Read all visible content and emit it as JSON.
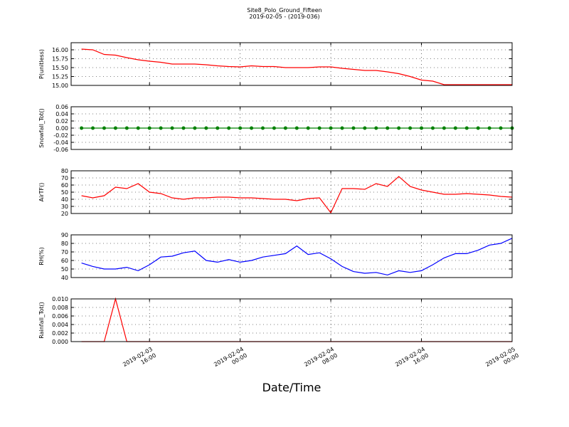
{
  "chart_data": {
    "type": "line",
    "title": "Site8_Polo_Ground_Fifteen",
    "subtitle": "2019-02-05 - (2019-036)",
    "xlabel": "Date/Time",
    "grid": true,
    "xlim": [
      "2019-02-03 09:05",
      "2019-02-05 00:00"
    ],
    "xticks": [
      {
        "value": "2019-02-03 16:00",
        "label": "2019-02-03\n16:00"
      },
      {
        "value": "2019-02-04 00:00",
        "label": "2019-02-04\n00:00"
      },
      {
        "value": "2019-02-04 08:00",
        "label": "2019-02-04\n08:00"
      },
      {
        "value": "2019-02-04 16:00",
        "label": "2019-02-04\n16:00"
      },
      {
        "value": "2019-02-05 00:00",
        "label": "2019-02-05\n00:00"
      }
    ],
    "x": [
      "2019-02-03 10:00",
      "2019-02-03 11:00",
      "2019-02-03 12:00",
      "2019-02-03 13:00",
      "2019-02-03 14:00",
      "2019-02-03 15:00",
      "2019-02-03 16:00",
      "2019-02-03 17:00",
      "2019-02-03 18:00",
      "2019-02-03 19:00",
      "2019-02-03 20:00",
      "2019-02-03 21:00",
      "2019-02-03 22:00",
      "2019-02-03 23:00",
      "2019-02-04 00:00",
      "2019-02-04 01:00",
      "2019-02-04 02:00",
      "2019-02-04 03:00",
      "2019-02-04 04:00",
      "2019-02-04 05:00",
      "2019-02-04 06:00",
      "2019-02-04 07:00",
      "2019-02-04 08:00",
      "2019-02-04 09:00",
      "2019-02-04 10:00",
      "2019-02-04 11:00",
      "2019-02-04 12:00",
      "2019-02-04 13:00",
      "2019-02-04 14:00",
      "2019-02-04 15:00",
      "2019-02-04 16:00",
      "2019-02-04 17:00",
      "2019-02-04 18:00",
      "2019-02-04 19:00",
      "2019-02-04 20:00",
      "2019-02-04 21:00",
      "2019-02-04 22:00",
      "2019-02-04 23:00",
      "2019-02-05 00:00"
    ],
    "panels": [
      {
        "ylabel": "P(unitless)",
        "ylim": [
          15.0,
          16.2
        ],
        "yticks": [
          {
            "value": 15,
            "label": "15.00"
          },
          15.25,
          {
            "value": 15.5,
            "label": "15.50"
          },
          15.75,
          {
            "value": 16,
            "label": "16.00"
          }
        ],
        "series": [
          {
            "color": "#ff0000",
            "markers": false,
            "values": [
              16.02,
              16.0,
              15.87,
              15.85,
              15.78,
              15.72,
              15.68,
              15.65,
              15.6,
              15.6,
              15.6,
              15.58,
              15.55,
              15.53,
              15.52,
              15.55,
              15.53,
              15.53,
              15.5,
              15.5,
              15.5,
              15.52,
              15.52,
              15.48,
              15.45,
              15.42,
              15.42,
              15.38,
              15.33,
              15.25,
              15.15,
              15.12,
              15.02,
              15.02,
              15.02,
              15.02,
              15.02,
              15.02,
              15.02
            ]
          }
        ]
      },
      {
        "ylabel": "Snowfall_Tot()",
        "ylim": [
          -0.06,
          0.06
        ],
        "yticks": [
          -0.06,
          -0.04,
          -0.02,
          {
            "value": 0,
            "label": "0.00"
          },
          0.02,
          0.04,
          0.06
        ],
        "series": [
          {
            "color": "#008000",
            "markers": true,
            "values": [
              0,
              0,
              0,
              0,
              0,
              0,
              0,
              0,
              0,
              0,
              0,
              0,
              0,
              0,
              0,
              0,
              0,
              0,
              0,
              0,
              0,
              0,
              0,
              0,
              0,
              0,
              0,
              0,
              0,
              0,
              0,
              0,
              0,
              0,
              0,
              0,
              0,
              0,
              0
            ]
          }
        ]
      },
      {
        "ylabel": "AirTF()",
        "ylim": [
          20,
          80
        ],
        "yticks": [
          20,
          30,
          40,
          50,
          60,
          70,
          80
        ],
        "series": [
          {
            "color": "#ff0000",
            "markers": false,
            "values": [
              45,
              42,
              45,
              57,
              55,
              62,
              50,
              48,
              42,
              40,
              42,
              42,
              43,
              43,
              42,
              42,
              41,
              40,
              40,
              38,
              41,
              42,
              21,
              55,
              55,
              54,
              62,
              58,
              72,
              58,
              53,
              50,
              47,
              47,
              48,
              47,
              46,
              44,
              43
            ]
          }
        ]
      },
      {
        "ylabel": "RH(%)",
        "ylim": [
          40,
          90
        ],
        "yticks": [
          40,
          50,
          60,
          70,
          80,
          90
        ],
        "series": [
          {
            "color": "#0000ff",
            "markers": false,
            "values": [
              57,
              53,
              50,
              50,
              52,
              48,
              55,
              64,
              65,
              69,
              71,
              60,
              58,
              61,
              58,
              60,
              64,
              66,
              68,
              77,
              67,
              69,
              62,
              53,
              47,
              45,
              46,
              43,
              48,
              46,
              48,
              55,
              63,
              68,
              68,
              72,
              78,
              80,
              86
            ]
          }
        ]
      },
      {
        "ylabel": "Rainfall_Tot()",
        "ylim": [
          0,
          0.01
        ],
        "yticks": [
          {
            "value": 0,
            "label": "0.000"
          },
          {
            "value": 0.002,
            "label": "0.002"
          },
          {
            "value": 0.004,
            "label": "0.004"
          },
          {
            "value": 0.006,
            "label": "0.006"
          },
          {
            "value": 0.008,
            "label": "0.008"
          },
          {
            "value": 0.01,
            "label": "0.010"
          }
        ],
        "series": [
          {
            "color": "#ff0000",
            "markers": false,
            "values": [
              0,
              0,
              0,
              0.01,
              0,
              0,
              0,
              0,
              0,
              0,
              0,
              0,
              0,
              0,
              0,
              0,
              0,
              0,
              0,
              0,
              0,
              0,
              0,
              0,
              0,
              0,
              0,
              0,
              0,
              0,
              0,
              0,
              0,
              0,
              0,
              0,
              0,
              0,
              0
            ]
          }
        ]
      }
    ]
  }
}
